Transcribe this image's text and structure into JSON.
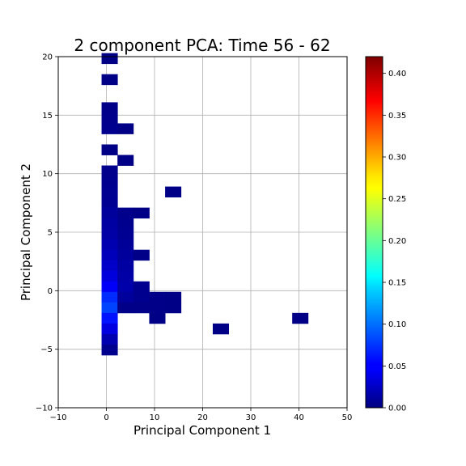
{
  "chart_data": {
    "type": "heatmap",
    "title": "2 component PCA: Time 56 - 62",
    "xlabel": "Principal Component 1",
    "ylabel": "Principal Component 2",
    "xlim": [
      -10,
      50
    ],
    "ylim": [
      -10,
      20
    ],
    "xticks": [
      -10,
      0,
      10,
      20,
      30,
      40,
      50
    ],
    "yticks": [
      -10,
      -5,
      0,
      5,
      10,
      15,
      20
    ],
    "grid": true,
    "colormap": "jet",
    "colorbar": {
      "range": [
        0,
        0.42
      ],
      "ticks": [
        "0.00",
        "0.05",
        "0.10",
        "0.15",
        "0.20",
        "0.25",
        "0.30",
        "0.35",
        "0.40"
      ]
    },
    "bin_width_x": 3.3,
    "bin_height_y": 0.9,
    "cells": [
      {
        "x0": -1.0,
        "y0": 19.4,
        "value": 0.003
      },
      {
        "x0": -1.0,
        "y0": 17.6,
        "value": 0.003
      },
      {
        "x0": -1.0,
        "y0": 15.2,
        "value": 0.004
      },
      {
        "x0": -1.0,
        "y0": 14.3,
        "value": 0.005
      },
      {
        "x0": -1.0,
        "y0": 13.4,
        "value": 0.006
      },
      {
        "x0": 2.3,
        "y0": 13.4,
        "value": 0.003
      },
      {
        "x0": -1.0,
        "y0": 11.6,
        "value": 0.003
      },
      {
        "x0": 2.3,
        "y0": 10.7,
        "value": 0.003
      },
      {
        "x0": -1.0,
        "y0": 9.8,
        "value": 0.005
      },
      {
        "x0": -1.0,
        "y0": 8.9,
        "value": 0.006
      },
      {
        "x0": -1.0,
        "y0": 8.0,
        "value": 0.007
      },
      {
        "x0": 12.2,
        "y0": 8.0,
        "value": 0.003
      },
      {
        "x0": -1.0,
        "y0": 7.1,
        "value": 0.008
      },
      {
        "x0": -1.0,
        "y0": 6.2,
        "value": 0.012
      },
      {
        "x0": 2.3,
        "y0": 6.2,
        "value": 0.005
      },
      {
        "x0": 5.6,
        "y0": 6.2,
        "value": 0.003
      },
      {
        "x0": -1.0,
        "y0": 5.3,
        "value": 0.014
      },
      {
        "x0": 2.3,
        "y0": 5.3,
        "value": 0.006
      },
      {
        "x0": -1.0,
        "y0": 4.4,
        "value": 0.016
      },
      {
        "x0": 2.3,
        "y0": 4.4,
        "value": 0.008
      },
      {
        "x0": -1.0,
        "y0": 3.5,
        "value": 0.02
      },
      {
        "x0": 2.3,
        "y0": 3.5,
        "value": 0.01
      },
      {
        "x0": -1.0,
        "y0": 2.6,
        "value": 0.024
      },
      {
        "x0": 2.3,
        "y0": 2.6,
        "value": 0.012
      },
      {
        "x0": 5.6,
        "y0": 2.6,
        "value": 0.004
      },
      {
        "x0": -1.0,
        "y0": 1.7,
        "value": 0.03
      },
      {
        "x0": 2.3,
        "y0": 1.7,
        "value": 0.014
      },
      {
        "x0": -1.0,
        "y0": 0.8,
        "value": 0.038
      },
      {
        "x0": 2.3,
        "y0": 0.8,
        "value": 0.016
      },
      {
        "x0": -1.0,
        "y0": -0.1,
        "value": 0.05
      },
      {
        "x0": 2.3,
        "y0": -0.1,
        "value": 0.018
      },
      {
        "x0": 5.6,
        "y0": -0.1,
        "value": 0.006
      },
      {
        "x0": -1.0,
        "y0": -1.0,
        "value": 0.07
      },
      {
        "x0": 2.3,
        "y0": -1.0,
        "value": 0.012
      },
      {
        "x0": 5.6,
        "y0": -1.0,
        "value": 0.006
      },
      {
        "x0": 8.9,
        "y0": -1.0,
        "value": 0.004
      },
      {
        "x0": 12.2,
        "y0": -1.0,
        "value": 0.003
      },
      {
        "x0": -1.0,
        "y0": -1.9,
        "value": 0.08
      },
      {
        "x0": 2.3,
        "y0": -1.9,
        "value": 0.004
      },
      {
        "x0": 5.6,
        "y0": -1.9,
        "value": 0.004
      },
      {
        "x0": 8.9,
        "y0": -1.9,
        "value": 0.004
      },
      {
        "x0": 12.2,
        "y0": -1.9,
        "value": 0.003
      },
      {
        "x0": 8.9,
        "y0": -2.8,
        "value": 0.003
      },
      {
        "x0": 38.6,
        "y0": -2.8,
        "value": 0.003
      },
      {
        "x0": -1.0,
        "y0": -2.8,
        "value": 0.06
      },
      {
        "x0": -1.0,
        "y0": -3.7,
        "value": 0.04
      },
      {
        "x0": 22.1,
        "y0": -3.7,
        "value": 0.003
      },
      {
        "x0": -1.0,
        "y0": -4.6,
        "value": 0.02
      },
      {
        "x0": -1.0,
        "y0": -5.5,
        "value": 0.006
      }
    ]
  }
}
